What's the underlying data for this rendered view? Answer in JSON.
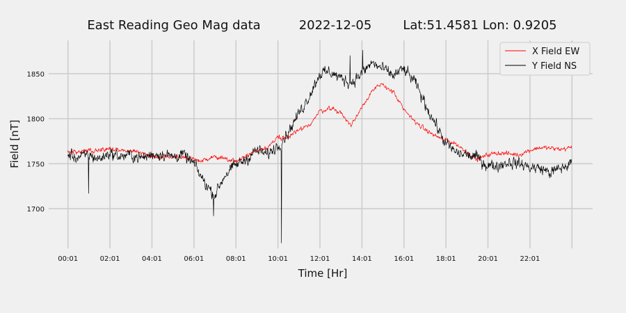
{
  "chart_data": {
    "type": "line",
    "title": {
      "main": "East Reading Geo Mag data",
      "date": "2022-12-05",
      "location": "Lat:51.4581  Lon: 0.9205"
    },
    "xlabel": "Time  [Hr]",
    "ylabel": "Field  [nT]",
    "x_ticks": [
      {
        "hour": 0.0167,
        "label": "00:01"
      },
      {
        "hour": 2.0167,
        "label": "02:01"
      },
      {
        "hour": 4.0167,
        "label": "04:01"
      },
      {
        "hour": 6.0167,
        "label": "06:01"
      },
      {
        "hour": 8.0167,
        "label": "08:01"
      },
      {
        "hour": 10.0167,
        "label": "10:01"
      },
      {
        "hour": 12.0167,
        "label": "12:01"
      },
      {
        "hour": 14.0167,
        "label": "14:01"
      },
      {
        "hour": 16.0167,
        "label": "16:01"
      },
      {
        "hour": 18.0167,
        "label": "18:01"
      },
      {
        "hour": 20.0167,
        "label": "20:01"
      },
      {
        "hour": 22.0167,
        "label": "22:01"
      }
    ],
    "x_grid_hours": [
      0.0167,
      2.0167,
      4.0167,
      6.0167,
      8.0167,
      10.0167,
      12.0167,
      14.0167,
      16.0167,
      18.0167,
      20.0167,
      22.0167,
      24.0167
    ],
    "xlim": [
      -0.9,
      25.0
    ],
    "y_ticks": [
      1700,
      1750,
      1800,
      1850
    ],
    "ylim": [
      1656,
      1887
    ],
    "grid": true,
    "legend_position": "top-right",
    "series": [
      {
        "name": "X Field EW",
        "color": "#ff0000",
        "x": [
          0,
          0.5,
          1,
          1.5,
          2,
          2.5,
          3,
          3.5,
          4,
          4.5,
          5,
          5.5,
          6,
          6.5,
          7,
          7.5,
          8,
          8.5,
          9,
          9.5,
          10,
          10.5,
          11,
          11.5,
          12,
          12.5,
          13,
          13.5,
          14,
          14.5,
          15,
          15.5,
          16,
          16.5,
          17,
          17.5,
          18,
          18.5,
          19,
          19.5,
          20,
          20.5,
          21,
          21.5,
          22,
          22.5,
          23,
          23.5,
          24
        ],
        "y": [
          1763,
          1763,
          1764,
          1765,
          1766,
          1765,
          1764,
          1761,
          1758,
          1757,
          1758,
          1757,
          1754,
          1753,
          1758,
          1756,
          1753,
          1758,
          1765,
          1768,
          1779,
          1780,
          1786,
          1793,
          1808,
          1812,
          1807,
          1792,
          1813,
          1831,
          1838,
          1830,
          1810,
          1798,
          1788,
          1781,
          1776,
          1772,
          1763,
          1754,
          1760,
          1762,
          1761,
          1760,
          1765,
          1768,
          1767,
          1766,
          1768
        ]
      },
      {
        "name": "Y Field NS",
        "color": "#000000",
        "x": [
          0,
          0.5,
          1,
          1.5,
          2,
          2.5,
          3,
          3.5,
          4,
          4.5,
          5,
          5.5,
          6,
          6.5,
          7,
          7.5,
          8,
          8.5,
          9,
          9.5,
          10,
          10.5,
          11,
          11.5,
          12,
          12.5,
          13,
          13.5,
          14,
          14.5,
          15,
          15.5,
          16,
          16.5,
          17,
          17.5,
          18,
          18.5,
          19,
          19.5,
          20,
          20.5,
          21,
          21.5,
          22,
          22.5,
          23,
          23.5,
          24
        ],
        "y": [
          1760,
          1757,
          1760,
          1755,
          1762,
          1758,
          1760,
          1756,
          1760,
          1761,
          1758,
          1760,
          1750,
          1730,
          1715,
          1738,
          1748,
          1755,
          1765,
          1760,
          1770,
          1785,
          1805,
          1825,
          1850,
          1852,
          1845,
          1840,
          1850,
          1862,
          1855,
          1848,
          1855,
          1842,
          1818,
          1795,
          1772,
          1762,
          1760,
          1757,
          1748,
          1748,
          1752,
          1750,
          1746,
          1745,
          1740,
          1745,
          1750
        ],
        "events": [
          {
            "x": 1.0,
            "y": 1717
          },
          {
            "x": 6.95,
            "y": 1692
          },
          {
            "x": 10.18,
            "y": 1662
          },
          {
            "x": 13.45,
            "y": 1870
          },
          {
            "x": 14.05,
            "y": 1876
          }
        ]
      }
    ]
  }
}
